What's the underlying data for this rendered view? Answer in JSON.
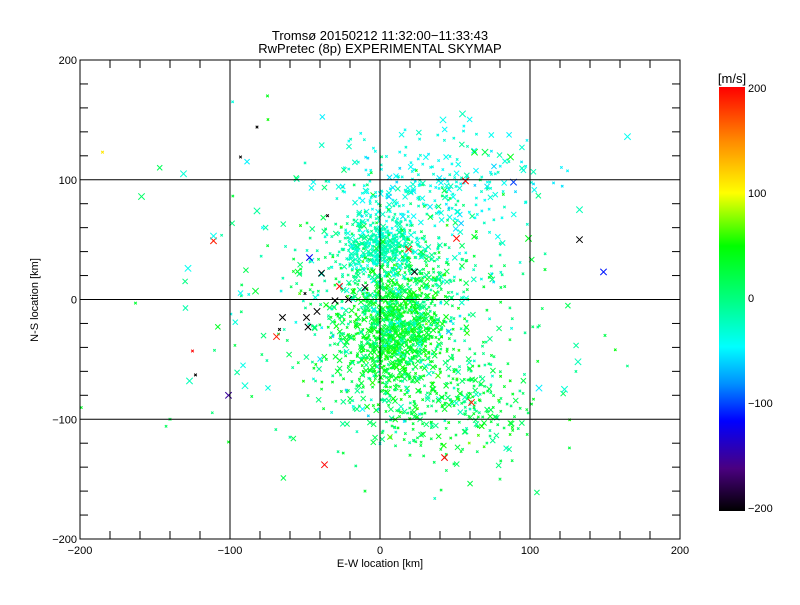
{
  "chart_data": {
    "type": "scatter",
    "title": "Tromsø 20150212 11:32:00−11:33:43",
    "subtitle": "RwPretec (8p) EXPERIMENTAL SKYMAP",
    "xlabel": "E-W location [km]",
    "ylabel": "N-S location [km]",
    "xlim": [
      -200,
      200
    ],
    "ylim": [
      -200,
      200
    ],
    "xticks": [
      -200,
      -100,
      0,
      100,
      200
    ],
    "yticks": [
      -200,
      -100,
      0,
      100,
      200
    ],
    "xtick_labels": [
      "−200",
      "−100",
      "0",
      "100",
      "200"
    ],
    "ytick_labels": [
      "−200",
      "−100",
      "0",
      "100",
      "200"
    ],
    "minor_tick_step": 20,
    "grid": true,
    "colorbar": {
      "label": "[m/s]",
      "range": [
        -200,
        200
      ],
      "ticks": [
        200,
        100,
        0,
        -100,
        -200
      ],
      "tick_labels": [
        "200",
        "100",
        "0",
        "−100",
        "−200"
      ],
      "stops": [
        {
          "v": -200,
          "color": "#000000"
        },
        {
          "v": -160,
          "color": "#4a0080"
        },
        {
          "v": -115,
          "color": "#0000ff"
        },
        {
          "v": -80,
          "color": "#0090ff"
        },
        {
          "v": -45,
          "color": "#00ffff"
        },
        {
          "v": 0,
          "color": "#00ff80"
        },
        {
          "v": 50,
          "color": "#00ff00"
        },
        {
          "v": 100,
          "color": "#ffff00"
        },
        {
          "v": 150,
          "color": "#ff8800"
        },
        {
          "v": 200,
          "color": "#ff0000"
        }
      ]
    },
    "notable_points": [
      [
        -111,
        49,
        190
      ],
      [
        -159,
        86,
        10
      ],
      [
        -131,
        105,
        -30
      ],
      [
        -111,
        53,
        -40
      ],
      [
        -128,
        26,
        -40
      ],
      [
        -127,
        -68,
        -20
      ],
      [
        -90,
        -72,
        -30
      ],
      [
        -101,
        -80,
        -150
      ],
      [
        -82,
        74,
        -10
      ],
      [
        -83,
        7,
        30
      ],
      [
        -47,
        35,
        -120
      ],
      [
        -39,
        22,
        -200
      ],
      [
        -27,
        11,
        200
      ],
      [
        -69,
        -31,
        190
      ],
      [
        -65,
        -15,
        -200
      ],
      [
        -49,
        -15,
        -200
      ],
      [
        -48,
        -23,
        -200
      ],
      [
        -42,
        -10,
        -200
      ],
      [
        -30,
        -1,
        -200
      ],
      [
        -21,
        0,
        -200
      ],
      [
        -37,
        -138,
        200
      ],
      [
        43,
        -132,
        200
      ],
      [
        61,
        -86,
        190
      ],
      [
        57,
        99,
        200
      ],
      [
        51,
        51,
        195
      ],
      [
        19,
        42,
        195
      ],
      [
        23,
        23,
        -200
      ],
      [
        133,
        50,
        -200
      ],
      [
        149,
        23,
        -110
      ],
      [
        89,
        98,
        -100
      ],
      [
        87,
        119,
        40
      ],
      [
        55,
        155,
        -20
      ],
      [
        165,
        136,
        -40
      ],
      [
        133,
        75,
        -20
      ],
      [
        132,
        -52,
        -20
      ],
      [
        123,
        -75,
        -30
      ],
      [
        106,
        -74,
        -50
      ],
      [
        99,
        51,
        40
      ],
      [
        63,
        123,
        40
      ],
      [
        70,
        123,
        20
      ],
      [
        42,
        150,
        -40
      ],
      [
        -10,
        10,
        -200
      ]
    ],
    "small_points": [
      [
        -75,
        170,
        40
      ],
      [
        -185,
        123,
        110
      ],
      [
        -82,
        144,
        -200
      ],
      [
        -93,
        119,
        -200
      ],
      [
        -125,
        -43,
        200
      ],
      [
        -123,
        -63,
        -200
      ],
      [
        -101,
        -119,
        40
      ],
      [
        -163,
        -3,
        30
      ],
      [
        -67,
        -25,
        -200
      ],
      [
        -50,
        5,
        -200
      ],
      [
        -35,
        70,
        -200
      ],
      [
        20,
        -130,
        30
      ],
      [
        -10,
        -160,
        30
      ],
      [
        -60,
        -115,
        -10
      ],
      [
        80,
        -150,
        20
      ],
      [
        110,
        25,
        30
      ],
      [
        150,
        -30,
        20
      ],
      [
        -140,
        -100,
        20
      ]
    ],
    "clusters": [
      {
        "center": [
          10,
          -25
        ],
        "sd": [
          18,
          28
        ],
        "count": 900,
        "v_mean": 35,
        "v_sd": 12
      },
      {
        "center": [
          0,
          45
        ],
        "sd": [
          14,
          14
        ],
        "count": 350,
        "v_mean": -20,
        "v_sd": 12
      },
      {
        "center": [
          15,
          -10
        ],
        "sd": [
          35,
          50
        ],
        "count": 700,
        "v_mean": 0,
        "v_sd": 22
      },
      {
        "center": [
          35,
          95
        ],
        "sd": [
          35,
          25
        ],
        "count": 250,
        "v_mean": -38,
        "v_sd": 10
      },
      {
        "center": [
          55,
          -95
        ],
        "sd": [
          25,
          20
        ],
        "count": 200,
        "v_mean": 20,
        "v_sd": 18
      },
      {
        "center": [
          0,
          0
        ],
        "sd": [
          60,
          60
        ],
        "count": 150,
        "v_mean": 0,
        "v_sd": 25
      }
    ]
  }
}
